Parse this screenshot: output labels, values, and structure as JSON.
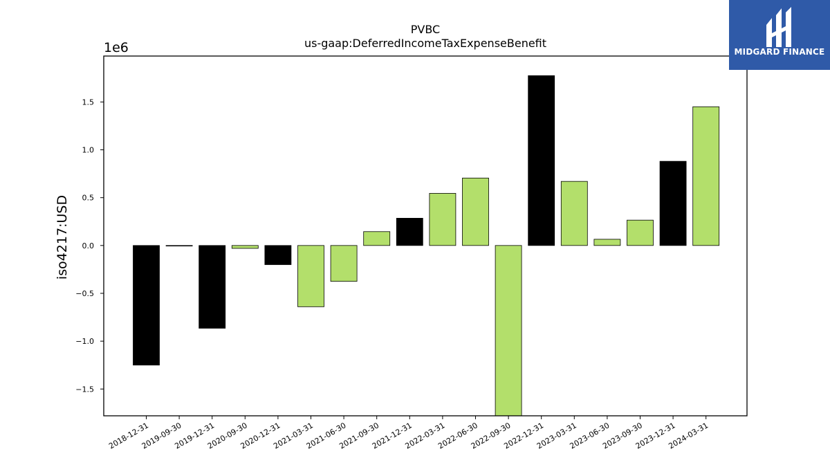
{
  "brand": {
    "name": "MIDGARD FINANCE",
    "bg_color": "#2f5aa8"
  },
  "chart_data": {
    "type": "bar",
    "title": "PVBC",
    "subtitle": "us-gaap:DeferredIncomeTaxExpenseBenefit",
    "xlabel": "",
    "ylabel": "iso4217:USD",
    "y_offset_label": "1e6",
    "ylim": [
      -1.78,
      1.98
    ],
    "y_ticks": [
      -1.5,
      -1.0,
      -0.5,
      0.0,
      0.5,
      1.0,
      1.5
    ],
    "y_tick_labels": [
      "−1.5",
      "−1.0",
      "−0.5",
      "0.0",
      "0.5",
      "1.0",
      "1.5"
    ],
    "grid": false,
    "categories": [
      "2018-12-31",
      "2019-09-30",
      "2019-12-31",
      "2020-09-30",
      "2020-12-31",
      "2021-03-31",
      "2021-06-30",
      "2021-09-30",
      "2021-12-31",
      "2022-03-31",
      "2022-06-30",
      "2022-09-30",
      "2022-12-31",
      "2023-03-31",
      "2023-06-30",
      "2023-09-30",
      "2023-12-31",
      "2024-03-31"
    ],
    "values": [
      -1250000,
      0,
      -865000,
      -30000,
      -200000,
      -640000,
      -375000,
      145000,
      285000,
      545000,
      705000,
      -1800000,
      1775000,
      670000,
      65000,
      265000,
      880000,
      1450000
    ],
    "bar_colors": [
      "#000000",
      "#000000",
      "#000000",
      "#b3df6b",
      "#000000",
      "#b3df6b",
      "#b3df6b",
      "#b3df6b",
      "#000000",
      "#b3df6b",
      "#b3df6b",
      "#b3df6b",
      "#000000",
      "#b3df6b",
      "#b3df6b",
      "#b3df6b",
      "#000000",
      "#b3df6b"
    ]
  }
}
